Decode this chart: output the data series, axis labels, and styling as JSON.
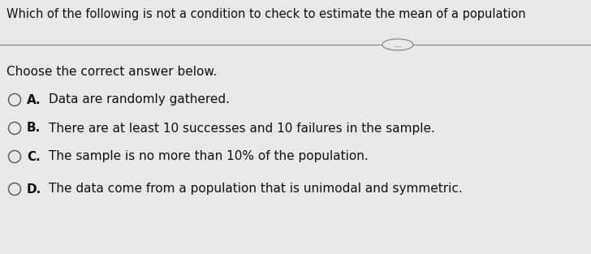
{
  "title": "Which of the following is not a condition to check to estimate the mean of a population",
  "subtitle": "Choose the correct answer below.",
  "options": [
    {
      "label": "A.",
      "text": "Data are randomly gathered."
    },
    {
      "label": "B.",
      "text": "There are at least 10 successes and 10 failures in the sample."
    },
    {
      "label": "C.",
      "text": "The sample is no more than 10% of the population."
    },
    {
      "label": "D.",
      "text": "The data come from a population that is unimodal and symmetric."
    }
  ],
  "bg_color": "#e8e8e8",
  "title_fontsize": 10.5,
  "subtitle_fontsize": 11.0,
  "option_fontsize": 11.0,
  "text_color": "#111111",
  "line_color": "#888888",
  "ellipse_text": "..."
}
